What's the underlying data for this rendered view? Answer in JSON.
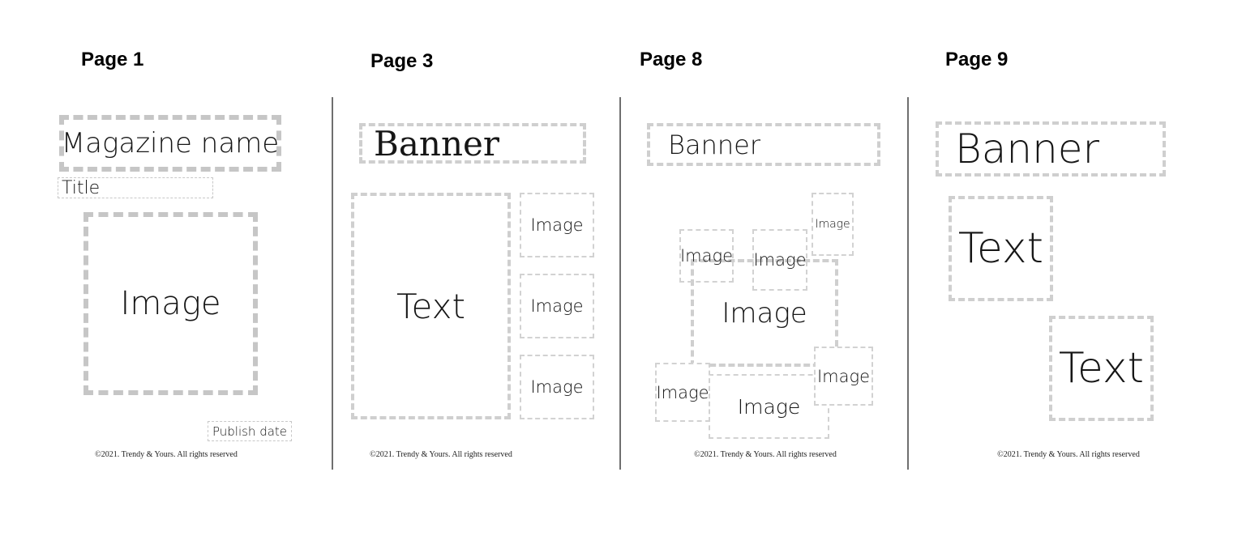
{
  "pages": [
    {
      "label": "Page 1",
      "blocks": {
        "magazine_name": "Magazine name",
        "title": "Title",
        "image": "Image",
        "publish_date": "Publish date"
      },
      "footer": "©2021. Trendy & Yours. All rights reserved"
    },
    {
      "label": "Page 3",
      "blocks": {
        "banner": "Banner",
        "text": "Text",
        "image_1": "Image",
        "image_2": "Image",
        "image_3": "Image"
      },
      "footer": "©2021. Trendy & Yours. All rights reserved"
    },
    {
      "label": "Page 8",
      "blocks": {
        "banner": "Banner",
        "image_top_right": "Image",
        "image_left": "Image",
        "image_middle": "Image",
        "image_center": "Image",
        "image_bottom_left": "Image",
        "image_bottom_center": "Image",
        "image_bottom_right": "Image"
      },
      "footer": "©2021. Trendy & Yours. All rights reserved"
    },
    {
      "label": "Page 9",
      "blocks": {
        "banner": "Banner",
        "text_1": "Text",
        "text_2": "Text"
      },
      "footer": "©2021. Trendy & Yours. All rights reserved"
    }
  ],
  "colors": {
    "dash": "#c6c6c6",
    "divider": "#6f6f6f",
    "text": "#161616",
    "background": "#ffffff"
  }
}
